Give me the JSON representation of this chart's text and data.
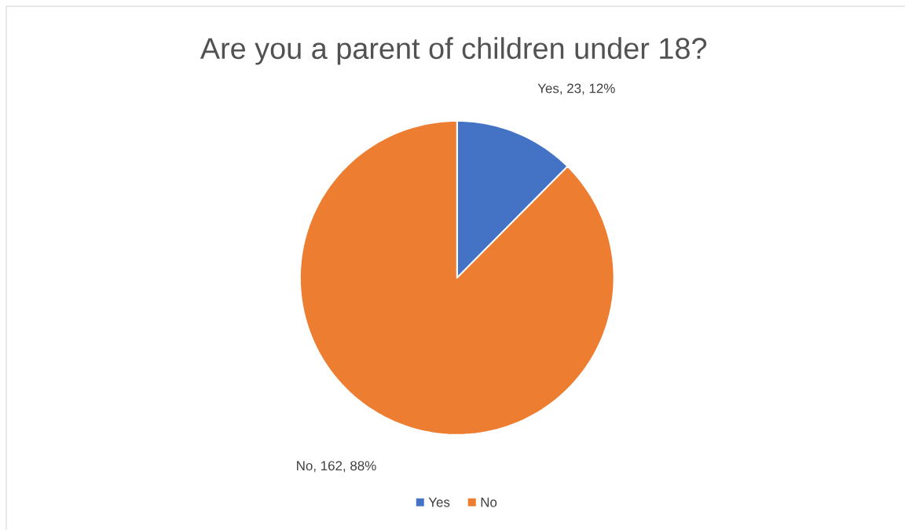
{
  "chart_data": {
    "type": "pie",
    "title": "Are you a parent of children under 18?",
    "categories": [
      "Yes",
      "No"
    ],
    "values": [
      23,
      162
    ],
    "colors": [
      "#4472c4",
      "#ed7d31"
    ],
    "value_labels": [
      "Yes, 23, 12%",
      "No, 162, 88%"
    ],
    "legend": "bottom"
  }
}
